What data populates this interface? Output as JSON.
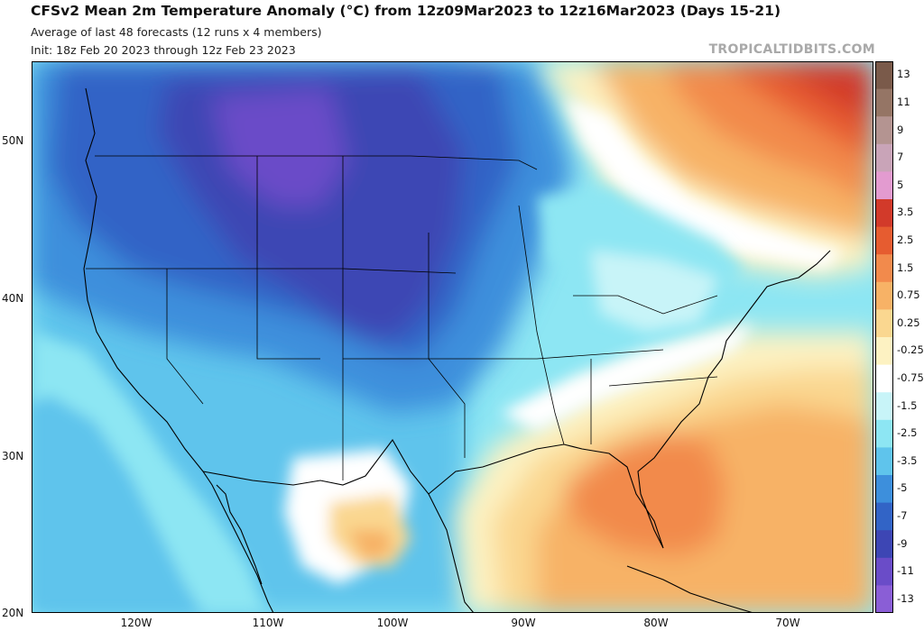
{
  "header": {
    "title": "CFSv2 Mean 2m Temperature Anomaly (°C) from 12z09Mar2023 to 12z16Mar2023 (Days 15-21)",
    "subtitle1": "Average of last 48 forecasts (12 runs x 4 members)",
    "subtitle2": "Init: 18z Feb 20 2023 through 12z Feb 23 2023",
    "watermark": "TROPICALTIDBITS.COM"
  },
  "map": {
    "projection": "cylindrical",
    "lon_range": [
      -128,
      -64
    ],
    "lat_range": [
      20,
      55
    ],
    "lat_labels": [
      "50N",
      "40N",
      "30N",
      "20N"
    ],
    "lon_labels": [
      "120W",
      "110W",
      "100W",
      "90W",
      "80W",
      "70W"
    ]
  },
  "colorbar": {
    "labels": [
      "13",
      "11",
      "9",
      "7",
      "5",
      "3.5",
      "2.5",
      "1.5",
      "0.75",
      "0.25",
      "-0.25",
      "-0.75",
      "-1.5",
      "-2.5",
      "-3.5",
      "-5",
      "-7",
      "-9",
      "-11",
      "-13"
    ],
    "colors": [
      "#7a5a4a",
      "#957565",
      "#b49491",
      "#c9a4b8",
      "#e39bd0",
      "#d23a2a",
      "#e65c30",
      "#f28a4c",
      "#f7b266",
      "#fad790",
      "#fdf2c2",
      "#ffffff",
      "#c8f4f8",
      "#8de6f3",
      "#5fc4ec",
      "#3d8fdc",
      "#3264c6",
      "#3d46b4",
      "#6a4cc8",
      "#8a5ed6"
    ]
  }
}
